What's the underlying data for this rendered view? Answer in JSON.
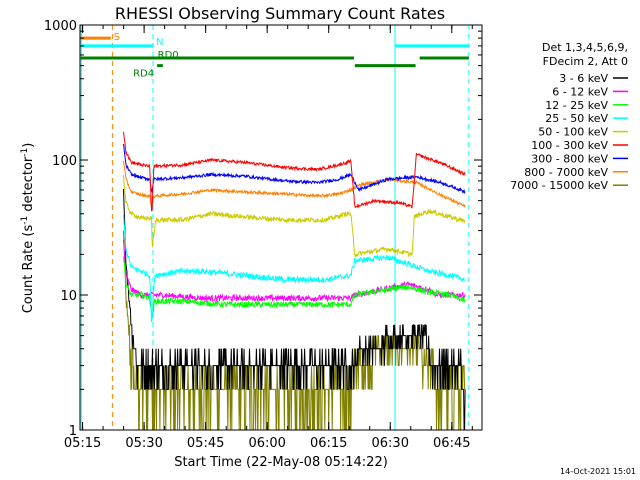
{
  "chart_data": {
    "type": "line",
    "title": "RHESSI Observing Summary Count Rates",
    "xlabel": "Start Time (22-May-08 05:14:22)",
    "ylabel_main": "Count Rate (s",
    "ylabel_sup1": "-1",
    "ylabel_mid": " detector",
    "ylabel_sup2": "-1",
    "ylabel_end": ")",
    "x_unit": "minutes after 05:14:22",
    "xlim": [
      0,
      98
    ],
    "ylim": [
      1,
      1000
    ],
    "y_scale": "log",
    "x_ticks": [
      {
        "value": 0.63,
        "label": "05:15"
      },
      {
        "value": 15.63,
        "label": "05:30"
      },
      {
        "value": 30.63,
        "label": "05:45"
      },
      {
        "value": 45.63,
        "label": "06:00"
      },
      {
        "value": 60.63,
        "label": "06:15"
      },
      {
        "value": 75.63,
        "label": "06:30"
      },
      {
        "value": 90.63,
        "label": "06:45"
      }
    ],
    "y_ticks": [
      {
        "value": 1,
        "label": "1"
      },
      {
        "value": 10,
        "label": "10"
      },
      {
        "value": 100,
        "label": "100"
      },
      {
        "value": 1000,
        "label": "1000"
      }
    ],
    "legend": {
      "header": [
        "Det 1,3,4,5,6,9,",
        "FDecim 2, Att 0"
      ],
      "placement": "right"
    },
    "series": [
      {
        "name": "3 - 6 keV",
        "color": "#000000",
        "noise": 0.18,
        "quantized": true,
        "points": [
          [
            10.6,
            60
          ],
          [
            11.2,
            18
          ],
          [
            12.5,
            6
          ],
          [
            14,
            3
          ],
          [
            15.5,
            3
          ],
          [
            20,
            3
          ],
          [
            30,
            3
          ],
          [
            40,
            3
          ],
          [
            55,
            3
          ],
          [
            61,
            3
          ],
          [
            67,
            3
          ],
          [
            68,
            4
          ],
          [
            80,
            5
          ],
          [
            84,
            5
          ],
          [
            86,
            3
          ],
          [
            92,
            3
          ],
          [
            94,
            2
          ]
        ]
      },
      {
        "name": "6 - 12 keV",
        "color": "#ff00ff",
        "noise": 0.05,
        "points": [
          [
            10.6,
            25
          ],
          [
            11.2,
            14
          ],
          [
            12.5,
            11
          ],
          [
            15,
            10
          ],
          [
            20,
            10
          ],
          [
            30,
            9.5
          ],
          [
            40,
            9.5
          ],
          [
            50,
            9.5
          ],
          [
            59,
            9.5
          ],
          [
            66,
            9.5
          ],
          [
            67,
            10
          ],
          [
            80,
            12
          ],
          [
            85,
            11
          ],
          [
            87,
            10
          ],
          [
            94,
            10
          ]
        ]
      },
      {
        "name": "12 - 25 keV",
        "color": "#00ff00",
        "noise": 0.05,
        "points": [
          [
            10.6,
            20
          ],
          [
            11.2,
            12
          ],
          [
            12.5,
            10
          ],
          [
            15,
            10
          ],
          [
            17,
            9.5
          ],
          [
            17.6,
            7
          ],
          [
            18.2,
            9
          ],
          [
            25,
            9
          ],
          [
            35,
            8.5
          ],
          [
            45,
            8.5
          ],
          [
            55,
            8.5
          ],
          [
            66,
            8.5
          ],
          [
            67,
            10
          ],
          [
            75,
            11
          ],
          [
            80,
            11.5
          ],
          [
            85,
            10.5
          ],
          [
            90,
            10
          ],
          [
            94,
            9
          ]
        ]
      },
      {
        "name": "25 - 50 keV",
        "color": "#00ffff",
        "noise": 0.05,
        "points": [
          [
            10.6,
            38
          ],
          [
            11.2,
            22
          ],
          [
            12.5,
            16
          ],
          [
            15,
            15
          ],
          [
            17,
            14
          ],
          [
            17.5,
            6
          ],
          [
            18.2,
            14
          ],
          [
            25,
            15
          ],
          [
            30,
            15
          ],
          [
            40,
            14
          ],
          [
            50,
            13
          ],
          [
            60,
            13
          ],
          [
            66,
            14
          ],
          [
            67,
            18
          ],
          [
            75,
            19
          ],
          [
            80,
            17
          ],
          [
            85,
            15
          ],
          [
            90,
            14
          ],
          [
            94,
            13
          ]
        ]
      },
      {
        "name": "50 - 100 keV",
        "color": "#cccc00",
        "noise": 0.04,
        "points": [
          [
            10.6,
            75
          ],
          [
            11.2,
            48
          ],
          [
            12.5,
            40
          ],
          [
            15,
            37
          ],
          [
            17.5,
            37
          ],
          [
            17.6,
            22
          ],
          [
            18.5,
            36
          ],
          [
            25,
            36
          ],
          [
            32,
            40
          ],
          [
            40,
            38
          ],
          [
            50,
            36
          ],
          [
            60,
            36
          ],
          [
            65,
            40
          ],
          [
            66,
            40
          ],
          [
            67,
            20
          ],
          [
            75,
            22
          ],
          [
            81,
            20
          ],
          [
            81.5,
            38
          ],
          [
            85,
            42
          ],
          [
            90,
            38
          ],
          [
            94,
            35
          ]
        ]
      },
      {
        "name": "100 - 300 keV",
        "color": "#ff0000",
        "noise": 0.025,
        "points": [
          [
            10.6,
            165
          ],
          [
            11.2,
            115
          ],
          [
            12.5,
            96
          ],
          [
            15,
            92
          ],
          [
            17,
            90
          ],
          [
            17.5,
            38
          ],
          [
            18,
            90
          ],
          [
            25,
            92
          ],
          [
            32,
            100
          ],
          [
            40,
            96
          ],
          [
            50,
            88
          ],
          [
            58,
            85
          ],
          [
            63,
            92
          ],
          [
            66,
            98
          ],
          [
            67,
            45
          ],
          [
            72,
            50
          ],
          [
            78,
            48
          ],
          [
            81,
            45
          ],
          [
            82,
            110
          ],
          [
            88,
            95
          ],
          [
            94,
            78
          ]
        ]
      },
      {
        "name": "300 - 800 keV",
        "color": "#0000ff",
        "noise": 0.025,
        "points": [
          [
            10.6,
            130
          ],
          [
            11.2,
            92
          ],
          [
            12.5,
            78
          ],
          [
            15,
            74
          ],
          [
            17,
            72
          ],
          [
            17.5,
            58
          ],
          [
            18,
            72
          ],
          [
            25,
            74
          ],
          [
            32,
            78
          ],
          [
            40,
            76
          ],
          [
            50,
            70
          ],
          [
            58,
            68
          ],
          [
            63,
            72
          ],
          [
            66,
            78
          ],
          [
            68,
            60
          ],
          [
            75,
            72
          ],
          [
            82,
            75
          ],
          [
            88,
            68
          ],
          [
            94,
            58
          ]
        ]
      },
      {
        "name": "800 - 7000 keV",
        "color": "#ff8000",
        "noise": 0.025,
        "points": [
          [
            10.6,
            100
          ],
          [
            11.2,
            72
          ],
          [
            12.5,
            58
          ],
          [
            15,
            55
          ],
          [
            17,
            54
          ],
          [
            17.5,
            45
          ],
          [
            18,
            54
          ],
          [
            25,
            56
          ],
          [
            32,
            60
          ],
          [
            40,
            58
          ],
          [
            50,
            56
          ],
          [
            58,
            54
          ],
          [
            63,
            56
          ],
          [
            66,
            60
          ],
          [
            68,
            65
          ],
          [
            75,
            72
          ],
          [
            82,
            68
          ],
          [
            88,
            55
          ],
          [
            94,
            45
          ]
        ]
      },
      {
        "name": "7000 - 15000 keV",
        "color": "#808000",
        "noise": 0.25,
        "quantized": true,
        "points": [
          [
            10.6,
            30
          ],
          [
            11.2,
            10
          ],
          [
            12.5,
            3
          ],
          [
            14,
            2
          ],
          [
            20,
            2
          ],
          [
            30,
            2
          ],
          [
            40,
            2
          ],
          [
            50,
            2
          ],
          [
            60,
            2
          ],
          [
            66,
            2
          ],
          [
            67,
            3
          ],
          [
            75,
            4
          ],
          [
            82,
            4
          ],
          [
            85,
            3
          ],
          [
            88,
            2
          ],
          [
            94,
            1.5
          ]
        ]
      }
    ],
    "attenuator_bars": [
      {
        "label": "S",
        "color": "#ff8000",
        "x_start": 0.2,
        "x_end": 7.5,
        "y": 800
      },
      {
        "label": "N",
        "color": "#00ffff",
        "x_start": 0.2,
        "x_end": 17.8,
        "y": 700
      },
      {
        "label": "",
        "color": "#00ffff",
        "x_start": 76.8,
        "x_end": 94.8,
        "y": 700
      },
      {
        "label": "RD0",
        "color": "#008000",
        "x_start": 0.2,
        "x_end": 66.8,
        "y": 570
      },
      {
        "label": "",
        "color": "#008000",
        "x_start": 82.8,
        "x_end": 94.8,
        "y": 570
      },
      {
        "label": "RD4",
        "color": "#008000",
        "x_start": 18.8,
        "x_end": 20.2,
        "y": 500
      },
      {
        "label": "",
        "color": "#008000",
        "x_start": 67.0,
        "x_end": 81.8,
        "y": 500
      }
    ],
    "vertical_markers": [
      {
        "x": 0.3,
        "color": "#00ffff",
        "style": "solid"
      },
      {
        "x": 7.9,
        "color": "#ff8000",
        "style": "dashed"
      },
      {
        "x": 17.8,
        "color": "#00ffff",
        "style": "dashed"
      },
      {
        "x": 76.8,
        "color": "#00ffff",
        "style": "solid"
      },
      {
        "x": 94.8,
        "color": "#00ffff",
        "style": "dashed"
      }
    ]
  },
  "footer": {
    "timestamp": "14-Oct-2021 15:01"
  }
}
